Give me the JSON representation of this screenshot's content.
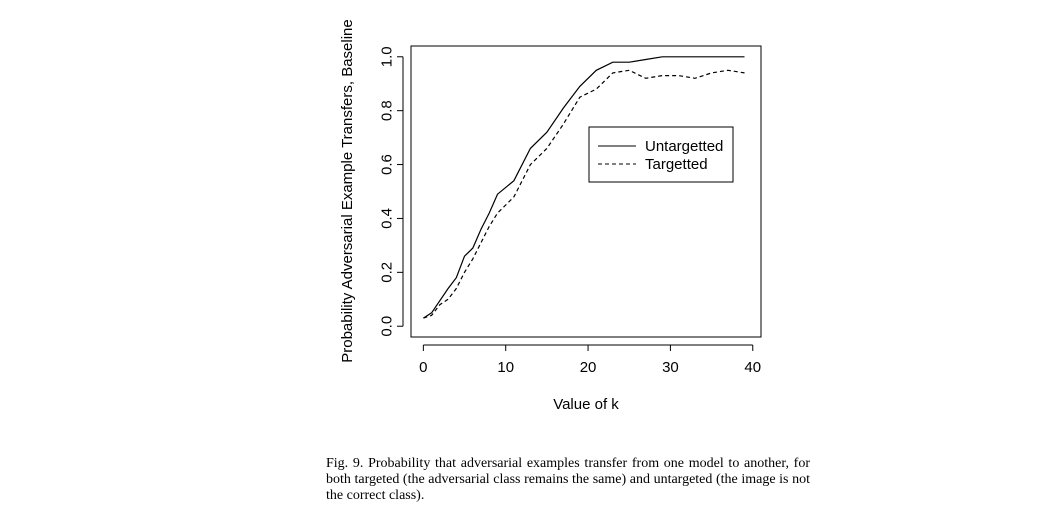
{
  "chart_data": {
    "type": "line",
    "xlabel": "Value of k",
    "ylabel": "Probability Adversarial Example Transfers, Baseline",
    "xlim": [
      -1.5,
      41
    ],
    "ylim": [
      -0.04,
      1.04
    ],
    "xticks": [
      0,
      10,
      20,
      30,
      40
    ],
    "yticks": [
      0.0,
      0.2,
      0.4,
      0.6,
      0.8,
      1.0
    ],
    "xtick_labels": [
      "0",
      "10",
      "20",
      "30",
      "40"
    ],
    "ytick_labels": [
      "0.0",
      "0.2",
      "0.4",
      "0.6",
      "0.8",
      "1.0"
    ],
    "grid": false,
    "legend_position": "center-right",
    "series": [
      {
        "name": "Untargetted",
        "style": "solid",
        "color": "#000000",
        "x": [
          0,
          1,
          3,
          4,
          5,
          6,
          7,
          8,
          9,
          11,
          13,
          15,
          17,
          19,
          21,
          23,
          25,
          27,
          29,
          31,
          33,
          35,
          37,
          39
        ],
        "y": [
          0.03,
          0.05,
          0.14,
          0.18,
          0.26,
          0.29,
          0.36,
          0.42,
          0.49,
          0.54,
          0.66,
          0.72,
          0.81,
          0.89,
          0.95,
          0.98,
          0.98,
          0.99,
          1.0,
          1.0,
          1.0,
          1.0,
          1.0,
          1.0
        ]
      },
      {
        "name": "Targetted",
        "style": "dashed",
        "color": "#000000",
        "x": [
          0,
          1,
          2,
          3,
          4,
          5,
          6,
          7,
          8,
          9,
          11,
          13,
          15,
          17,
          19,
          21,
          23,
          25,
          27,
          29,
          31,
          33,
          35,
          37,
          39
        ],
        "y": [
          0.03,
          0.04,
          0.08,
          0.1,
          0.14,
          0.2,
          0.25,
          0.31,
          0.37,
          0.42,
          0.48,
          0.6,
          0.66,
          0.75,
          0.85,
          0.88,
          0.94,
          0.95,
          0.92,
          0.93,
          0.93,
          0.92,
          0.94,
          0.95,
          0.94
        ]
      }
    ]
  },
  "caption": {
    "text": "Fig. 9.  Probability that adversarial examples transfer from one model to another, for both targeted (the adversarial class remains the same) and untargeted (the image is not the correct class)."
  }
}
